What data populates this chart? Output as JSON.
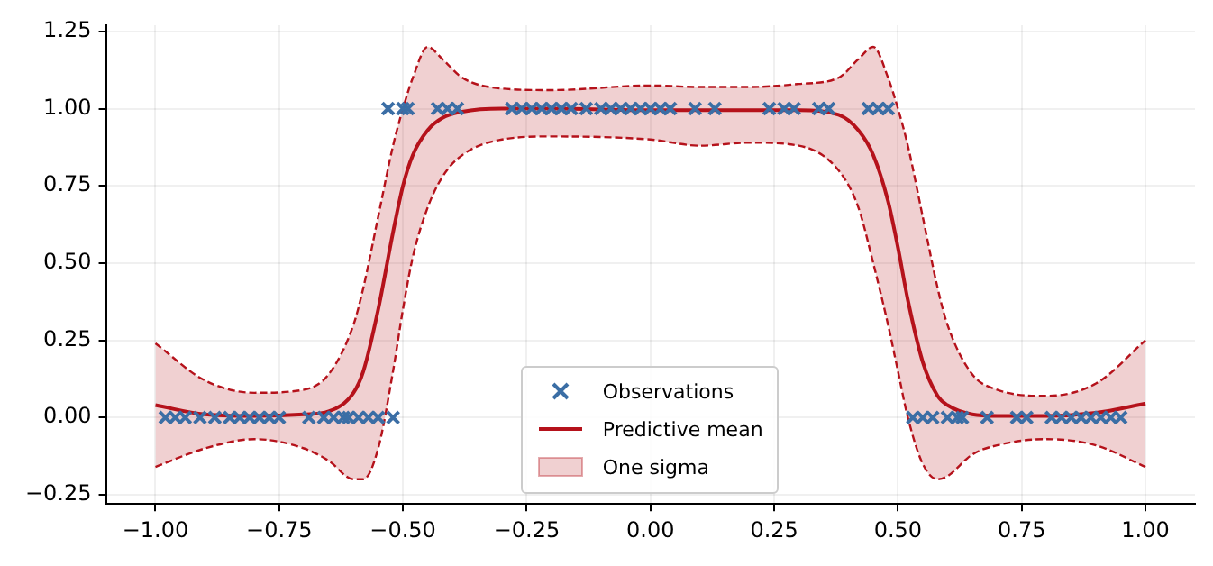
{
  "chart_data": {
    "type": "line",
    "xlim": [
      -1.1,
      1.1
    ],
    "xticks": [
      {
        "value": -1,
        "label": "−1.00"
      },
      {
        "value": -0.75,
        "label": "−0.75"
      },
      {
        "value": -0.5,
        "label": "−0.50"
      },
      {
        "value": -0.25,
        "label": "−0.25"
      },
      {
        "value": 0,
        "label": "0.00"
      },
      {
        "value": 0.25,
        "label": "0.25"
      },
      {
        "value": 0.5,
        "label": "0.50"
      },
      {
        "value": 0.75,
        "label": "0.75"
      },
      {
        "value": 1,
        "label": "1.00"
      }
    ],
    "ylim": [
      -0.28,
      1.27
    ],
    "yticks": [
      {
        "value": -0.25,
        "label": "−0.25"
      },
      {
        "value": 0,
        "label": "0.00"
      },
      {
        "value": 0.25,
        "label": "0.25"
      },
      {
        "value": 0.5,
        "label": "0.50"
      },
      {
        "value": 0.75,
        "label": "0.75"
      },
      {
        "value": 1,
        "label": "1.00"
      },
      {
        "value": 1.25,
        "label": "1.25"
      }
    ],
    "grid": true,
    "legend": "bottom",
    "series": [
      {
        "name": "Observations",
        "type": "scatter",
        "marker": "cross",
        "color": "#3b6ea5",
        "x": [
          -0.98,
          -0.96,
          -0.94,
          -0.91,
          -0.88,
          -0.85,
          -0.83,
          -0.81,
          -0.79,
          -0.77,
          -0.75,
          -0.69,
          -0.66,
          -0.64,
          -0.62,
          -0.61,
          -0.59,
          -0.57,
          -0.55,
          -0.52,
          -0.53,
          -0.5,
          -0.49,
          -0.43,
          -0.41,
          -0.39,
          -0.28,
          -0.26,
          -0.24,
          -0.22,
          -0.2,
          -0.18,
          -0.16,
          -0.13,
          -0.1,
          -0.08,
          -0.06,
          -0.04,
          -0.02,
          0,
          0.02,
          0.04,
          0.09,
          0.13,
          0.24,
          0.27,
          0.29,
          0.34,
          0.36,
          0.44,
          0.46,
          0.48,
          0.53,
          0.55,
          0.57,
          0.6,
          0.62,
          0.63,
          0.68,
          0.74,
          0.76,
          0.81,
          0.83,
          0.85,
          0.87,
          0.89,
          0.91,
          0.93,
          0.95
        ],
        "values": [
          0,
          0,
          0,
          0,
          0,
          0,
          0,
          0,
          0,
          0,
          0,
          0,
          0,
          0,
          0,
          0,
          0,
          0,
          0,
          0,
          1,
          1,
          1,
          1,
          1,
          1,
          1,
          1,
          1,
          1,
          1,
          1,
          1,
          1,
          1,
          1,
          1,
          1,
          1,
          1,
          1,
          1,
          1,
          1,
          1,
          1,
          1,
          1,
          1,
          1,
          1,
          1,
          0,
          0,
          0,
          0,
          0,
          0,
          0,
          0,
          0,
          0,
          0,
          0,
          0,
          0,
          0,
          0,
          0
        ]
      },
      {
        "name": "Predictive mean",
        "color": "#b5121b",
        "line_style": "solid",
        "marker": "none",
        "x": [
          -1,
          -0.9,
          -0.8,
          -0.7,
          -0.65,
          -0.6,
          -0.58,
          -0.55,
          -0.52,
          -0.5,
          -0.48,
          -0.45,
          -0.42,
          -0.38,
          -0.3,
          -0.2,
          0,
          0.1,
          0.2,
          0.3,
          0.38,
          0.42,
          0.45,
          0.48,
          0.5,
          0.52,
          0.55,
          0.58,
          0.6,
          0.65,
          0.7,
          0.8,
          0.9,
          1
        ],
        "values": [
          0.04,
          0.01,
          0.005,
          0.01,
          0.02,
          0.08,
          0.15,
          0.35,
          0.6,
          0.75,
          0.85,
          0.93,
          0.97,
          0.99,
          1.0,
          1.0,
          0.995,
          0.995,
          0.995,
          0.995,
          0.98,
          0.93,
          0.85,
          0.7,
          0.55,
          0.38,
          0.18,
          0.07,
          0.04,
          0.01,
          0.005,
          0.005,
          0.015,
          0.045
        ],
        "lower": [
          -0.16,
          -0.1,
          -0.07,
          -0.1,
          -0.14,
          -0.2,
          -0.2,
          -0.1,
          0.15,
          0.35,
          0.52,
          0.68,
          0.78,
          0.85,
          0.9,
          0.91,
          0.9,
          0.88,
          0.89,
          0.88,
          0.8,
          0.68,
          0.5,
          0.3,
          0.15,
          0,
          -0.15,
          -0.2,
          -0.19,
          -0.12,
          -0.09,
          -0.07,
          -0.09,
          -0.16
        ],
        "upper": [
          0.24,
          0.12,
          0.08,
          0.09,
          0.14,
          0.3,
          0.42,
          0.65,
          0.88,
          1.0,
          1.1,
          1.2,
          1.16,
          1.1,
          1.065,
          1.06,
          1.075,
          1.07,
          1.07,
          1.08,
          1.1,
          1.16,
          1.2,
          1.1,
          1.0,
          0.88,
          0.65,
          0.42,
          0.3,
          0.14,
          0.09,
          0.07,
          0.11,
          0.25
        ]
      },
      {
        "color": "#b5121b",
        "line_style": "dashed",
        "marker": "none",
        "x": [
          -1,
          -0.9,
          -0.8,
          -0.7,
          -0.65,
          -0.6,
          -0.58,
          -0.55,
          -0.52,
          -0.5,
          -0.48,
          -0.45,
          -0.42,
          -0.38,
          -0.3,
          -0.2,
          0,
          0.1,
          0.2,
          0.3,
          0.38,
          0.42,
          0.45,
          0.48,
          0.5,
          0.52,
          0.55,
          0.58,
          0.6,
          0.65,
          0.7,
          0.8,
          0.9,
          1
        ],
        "values": [
          -0.16,
          -0.1,
          -0.07,
          -0.1,
          -0.14,
          -0.2,
          -0.2,
          -0.1,
          0.15,
          0.35,
          0.52,
          0.68,
          0.78,
          0.85,
          0.9,
          0.91,
          0.9,
          0.88,
          0.89,
          0.88,
          0.8,
          0.68,
          0.5,
          0.3,
          0.15,
          0,
          -0.15,
          -0.2,
          -0.19,
          -0.12,
          -0.09,
          -0.07,
          -0.09,
          -0.16
        ]
      },
      {
        "name": "One sigma",
        "color": "#b5121b",
        "line_style": "dashed",
        "marker": "none",
        "x": [
          -1,
          -0.9,
          -0.8,
          -0.7,
          -0.65,
          -0.6,
          -0.58,
          -0.55,
          -0.52,
          -0.5,
          -0.48,
          -0.45,
          -0.42,
          -0.38,
          -0.3,
          -0.2,
          0,
          0.1,
          0.2,
          0.3,
          0.38,
          0.42,
          0.45,
          0.48,
          0.5,
          0.52,
          0.55,
          0.58,
          0.6,
          0.65,
          0.7,
          0.8,
          0.9,
          1
        ],
        "values": [
          0.24,
          0.12,
          0.08,
          0.09,
          0.14,
          0.3,
          0.42,
          0.65,
          0.88,
          1.0,
          1.1,
          1.2,
          1.16,
          1.1,
          1.065,
          1.06,
          1.075,
          1.07,
          1.07,
          1.08,
          1.1,
          1.16,
          1.2,
          1.1,
          1.0,
          0.88,
          0.65,
          0.42,
          0.3,
          0.14,
          0.09,
          0.07,
          0.11,
          0.25
        ]
      }
    ]
  }
}
